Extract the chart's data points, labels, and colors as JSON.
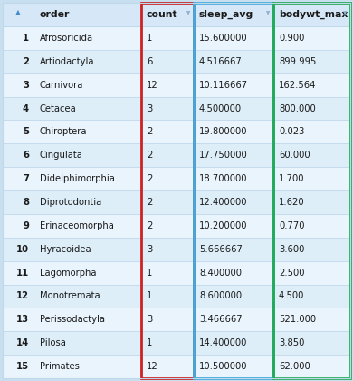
{
  "rows": [
    [
      "Afrosoricida",
      "1",
      "15.600000",
      "0.900"
    ],
    [
      "Artiodactyla",
      "6",
      "4.516667",
      "899.995"
    ],
    [
      "Carnivora",
      "12",
      "10.116667",
      "162.564"
    ],
    [
      "Cetacea",
      "3",
      "4.500000",
      "800.000"
    ],
    [
      "Chiroptera",
      "2",
      "19.800000",
      "0.023"
    ],
    [
      "Cingulata",
      "2",
      "17.750000",
      "60.000"
    ],
    [
      "Didelphimorphia",
      "2",
      "18.700000",
      "1.700"
    ],
    [
      "Diprotodontia",
      "2",
      "12.400000",
      "1.620"
    ],
    [
      "Erinaceomorpha",
      "2",
      "10.200000",
      "0.770"
    ],
    [
      "Hyracoidea",
      "3",
      "5.666667",
      "3.600"
    ],
    [
      "Lagomorpha",
      "1",
      "8.400000",
      "2.500"
    ],
    [
      "Monotremata",
      "1",
      "8.600000",
      "4.500"
    ],
    [
      "Perissodactyla",
      "3",
      "3.466667",
      "521.000"
    ],
    [
      "Pilosa",
      "1",
      "14.400000",
      "3.850"
    ],
    [
      "Primates",
      "12",
      "10.500000",
      "62.000"
    ]
  ],
  "row_numbers": [
    "1",
    "2",
    "3",
    "4",
    "5",
    "6",
    "7",
    "8",
    "9",
    "10",
    "11",
    "12",
    "13",
    "14",
    "15"
  ],
  "col_headers": [
    "order",
    "count",
    "sleep_avg",
    "bodywt_max"
  ],
  "header_bg": "#d6e8f7",
  "row_bg_light": "#eaf4fc",
  "row_bg_dark": "#ddeef8",
  "text_color": "#1a1a1a",
  "border_color_count": "#cc2222",
  "border_color_sleep": "#44aadd",
  "border_color_bodywt": "#22aa55",
  "grid_color": "#c0d8ec",
  "fig_bg": "#c8dff0",
  "arrow_color": "#4488cc",
  "font_size_header": 7.8,
  "font_size_data": 7.2,
  "font_size_rownum": 7.2
}
